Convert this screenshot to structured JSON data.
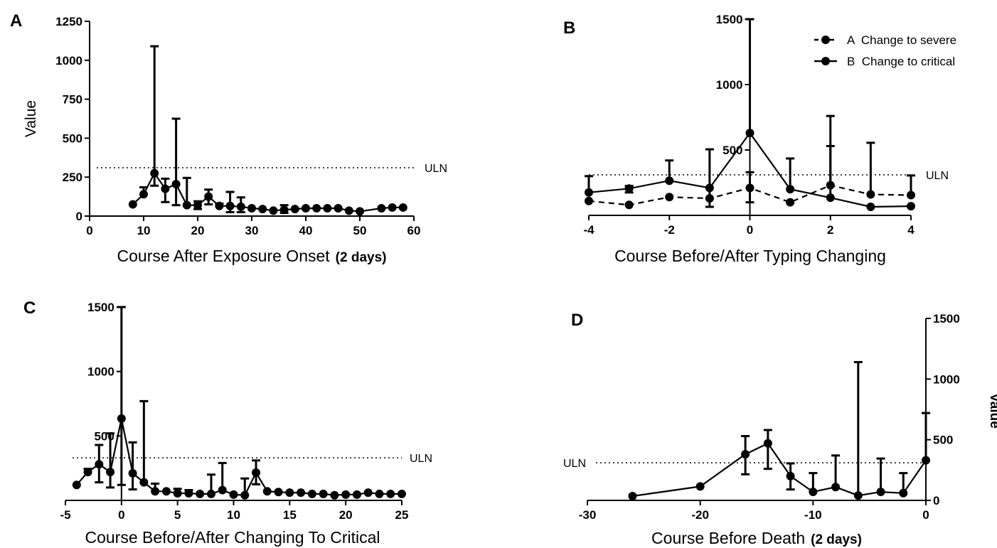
{
  "chart_data": [
    {
      "type": "line",
      "panel": "A",
      "xlabel": "Course After Exposure Onset",
      "xlabel_suffix": "(2 days)",
      "ylabel": "Value",
      "xlim": [
        0,
        60
      ],
      "ylim": [
        0,
        1250
      ],
      "xticks": [
        0,
        10,
        20,
        30,
        40,
        50,
        60
      ],
      "yticks": [
        0,
        250,
        500,
        750,
        1000,
        1250
      ],
      "reference_line": {
        "value": 310,
        "label": "ULN"
      },
      "grid": false,
      "series": [
        {
          "style": "solid",
          "x": [
            8,
            10,
            12,
            14,
            16,
            18,
            20,
            22,
            24,
            26,
            28,
            30,
            32,
            34,
            36,
            38,
            40,
            42,
            44,
            46,
            48,
            50,
            54,
            56,
            58
          ],
          "y": [
            75,
            140,
            275,
            175,
            205,
            70,
            70,
            125,
            65,
            65,
            60,
            50,
            45,
            35,
            40,
            45,
            50,
            50,
            50,
            50,
            35,
            30,
            50,
            55,
            55
          ],
          "err_upper": [
            0,
            185,
            1090,
            240,
            625,
            245,
            95,
            170,
            80,
            155,
            120,
            0,
            0,
            0,
            70,
            0,
            0,
            0,
            0,
            0,
            0,
            0,
            0,
            0,
            0
          ],
          "err_lower": [
            0,
            0,
            195,
            90,
            70,
            0,
            45,
            75,
            0,
            25,
            25,
            0,
            0,
            0,
            20,
            0,
            0,
            0,
            0,
            0,
            0,
            0,
            0,
            0,
            0
          ]
        }
      ]
    },
    {
      "type": "line",
      "panel": "B",
      "xlabel": "Course Before/After Typing Changing",
      "ylabel": "",
      "xlim": [
        -4,
        4
      ],
      "ylim": [
        0,
        1500
      ],
      "xticks": [
        -4,
        -2,
        0,
        2,
        4
      ],
      "yticks": [
        500,
        1000,
        1500
      ],
      "reference_line": {
        "value": 310,
        "label": "ULN"
      },
      "grid": false,
      "legend_position": "top-right",
      "series": [
        {
          "name": "A  Change to severe",
          "style": "dashed",
          "x": [
            -4,
            -3,
            -2,
            -1,
            0,
            1,
            2,
            3,
            4
          ],
          "y": [
            110,
            80,
            140,
            130,
            210,
            100,
            230,
            160,
            155
          ],
          "err_upper": [
            0,
            0,
            0,
            0,
            330,
            0,
            530,
            555,
            305
          ],
          "err_lower": [
            0,
            0,
            0,
            0,
            100,
            0,
            0,
            0,
            0
          ]
        },
        {
          "name": "B  Change to critical",
          "style": "solid",
          "x": [
            -4,
            -3,
            -2,
            -1,
            0,
            1,
            2,
            3,
            4
          ],
          "y": [
            175,
            205,
            265,
            210,
            630,
            200,
            135,
            65,
            70
          ],
          "err_upper": [
            300,
            225,
            420,
            505,
            1500,
            435,
            760,
            0,
            0
          ],
          "err_lower": [
            0,
            175,
            0,
            65,
            0,
            0,
            0,
            0,
            0
          ]
        }
      ]
    },
    {
      "type": "line",
      "panel": "C",
      "xlabel": "Course Before/After Changing To Critical",
      "ylabel": "",
      "xlim": [
        -5,
        25
      ],
      "ylim": [
        0,
        1500
      ],
      "xticks": [
        -5,
        0,
        5,
        10,
        15,
        20,
        25
      ],
      "yticks": [
        500,
        1000,
        1500
      ],
      "reference_line": {
        "value": 330,
        "label": "ULN"
      },
      "grid": false,
      "series": [
        {
          "style": "solid",
          "x": [
            -4,
            -3,
            -2,
            -1,
            0,
            1,
            2,
            3,
            4,
            5,
            6,
            7,
            8,
            9,
            10,
            11,
            12,
            13,
            14,
            15,
            16,
            17,
            18,
            19,
            20,
            21,
            22,
            23,
            24,
            25
          ],
          "y": [
            120,
            220,
            280,
            220,
            635,
            210,
            140,
            70,
            70,
            55,
            55,
            50,
            50,
            80,
            45,
            40,
            215,
            70,
            65,
            60,
            60,
            50,
            50,
            40,
            45,
            45,
            60,
            50,
            50,
            50
          ],
          "err_upper": [
            0,
            245,
            430,
            520,
            1500,
            450,
            770,
            130,
            0,
            90,
            80,
            0,
            200,
            290,
            0,
            170,
            310,
            0,
            0,
            0,
            0,
            0,
            0,
            0,
            0,
            0,
            0,
            0,
            0,
            0
          ],
          "err_lower": [
            0,
            0,
            140,
            100,
            120,
            85,
            0,
            0,
            0,
            0,
            0,
            0,
            0,
            0,
            0,
            0,
            125,
            0,
            0,
            0,
            0,
            0,
            0,
            0,
            0,
            0,
            0,
            0,
            0,
            0
          ]
        }
      ]
    },
    {
      "type": "line",
      "panel": "D",
      "xlabel": "Course Before Death",
      "xlabel_suffix": "(2 days)",
      "ylabel": "Value",
      "yaxis_position": "right",
      "xlim": [
        -30,
        0
      ],
      "ylim": [
        0,
        1500
      ],
      "xticks": [
        -30,
        -20,
        -10,
        0
      ],
      "yticks": [
        0,
        500,
        1000,
        1500
      ],
      "reference_line": {
        "value": 310,
        "label": "ULN"
      },
      "grid": false,
      "series": [
        {
          "style": "solid",
          "x": [
            -26,
            -20,
            -16,
            -14,
            -12,
            -10,
            -8,
            -6,
            -4,
            -2,
            0
          ],
          "y": [
            35,
            115,
            380,
            470,
            200,
            70,
            110,
            40,
            70,
            60,
            330
          ],
          "err_upper": [
            0,
            0,
            530,
            580,
            305,
            225,
            370,
            1140,
            345,
            225,
            720
          ],
          "err_lower": [
            0,
            0,
            215,
            260,
            90,
            0,
            0,
            0,
            0,
            0,
            0
          ]
        }
      ]
    }
  ]
}
